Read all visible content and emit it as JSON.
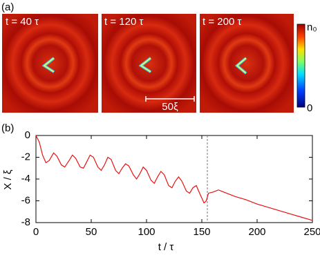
{
  "panel_labels": [
    "(a)",
    "(b)"
  ],
  "snapshots": [
    {
      "label": "t = 40 τ"
    },
    {
      "label": "t = 120 τ"
    },
    {
      "label": "t = 200 τ"
    }
  ],
  "scale_bar": "50ξ",
  "colorbar": {
    "top": "n₀",
    "bottom": "0"
  },
  "chart_data": {
    "type": "line",
    "x_label": "t / τ",
    "y_label": "X / ξ",
    "x": [
      0,
      3,
      6,
      9,
      12,
      16,
      19,
      23,
      26,
      30,
      33,
      36,
      40,
      43,
      46,
      49,
      52,
      56,
      59,
      62,
      65,
      68,
      72,
      75,
      78,
      81,
      84,
      88,
      91,
      94,
      97,
      100,
      104,
      107,
      110,
      113,
      116,
      120,
      123,
      126,
      129,
      132,
      136,
      139,
      142,
      145,
      148,
      152,
      154,
      156,
      160,
      165,
      170,
      180,
      190,
      200,
      210,
      220,
      230,
      240,
      250
    ],
    "series": [
      {
        "color": "#e8110f",
        "values": [
          0,
          -0.6,
          -1.8,
          -2.5,
          -2.3,
          -1.6,
          -1.9,
          -2.7,
          -2.9,
          -2.3,
          -1.8,
          -2.1,
          -2.9,
          -3.0,
          -2.4,
          -1.8,
          -2.0,
          -2.9,
          -3.2,
          -2.7,
          -2.0,
          -2.2,
          -3.2,
          -3.5,
          -3.0,
          -2.6,
          -2.8,
          -3.6,
          -4.0,
          -3.5,
          -2.9,
          -3.2,
          -4.1,
          -4.4,
          -3.8,
          -3.3,
          -3.6,
          -4.6,
          -4.8,
          -4.2,
          -3.8,
          -4.2,
          -5.1,
          -5.3,
          -4.8,
          -4.6,
          -5.3,
          -6.2,
          -6.0,
          -5.3,
          -5.2,
          -5.0,
          -5.2,
          -5.6,
          -5.9,
          -6.3,
          -6.6,
          -6.9,
          -7.2,
          -7.5,
          -7.8
        ]
      }
    ],
    "xlim": [
      0,
      250
    ],
    "ylim": [
      -8,
      0
    ],
    "xticks": [
      0,
      50,
      100,
      150,
      200,
      250
    ],
    "yticks": [
      0,
      -2,
      -4,
      -6,
      -8
    ],
    "vline": 155
  }
}
